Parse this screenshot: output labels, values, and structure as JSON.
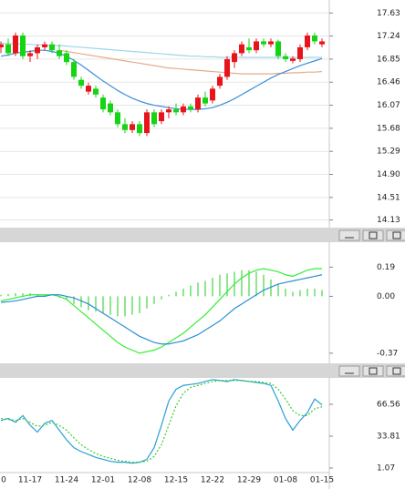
{
  "chart_data": [
    {
      "type": "candlestick",
      "open": [
        17.05,
        17.1,
        16.95,
        17.25,
        16.9,
        16.95,
        17.05,
        17.1,
        17.0,
        16.95,
        16.8,
        16.5,
        16.3,
        16.35,
        16.2,
        16.1,
        15.95,
        15.75,
        15.65,
        15.75,
        15.6,
        15.95,
        15.8,
        15.95,
        16.0,
        15.95,
        16.05,
        16.0,
        16.2,
        16.15,
        16.4,
        16.55,
        16.8,
        16.95,
        17.05,
        17.0,
        17.15,
        17.1,
        17.15,
        16.9,
        16.82,
        16.85,
        17.05,
        17.25,
        17.1
      ],
      "high": [
        17.15,
        17.2,
        17.3,
        17.3,
        17.0,
        17.1,
        17.15,
        17.15,
        17.1,
        17.0,
        16.85,
        16.55,
        16.45,
        16.4,
        16.25,
        16.15,
        16.0,
        15.85,
        15.8,
        15.8,
        16.0,
        16.0,
        16.0,
        16.05,
        16.1,
        16.1,
        16.1,
        16.25,
        16.3,
        16.4,
        16.6,
        16.9,
        17.0,
        17.15,
        17.2,
        17.2,
        17.2,
        17.2,
        17.18,
        16.95,
        16.9,
        17.1,
        17.3,
        17.3,
        17.2
      ],
      "low": [
        16.95,
        16.9,
        16.9,
        16.85,
        16.8,
        16.85,
        17.0,
        16.95,
        16.85,
        16.75,
        16.5,
        16.35,
        16.25,
        16.2,
        15.95,
        15.9,
        15.7,
        15.6,
        15.6,
        15.55,
        15.55,
        15.7,
        15.75,
        15.85,
        15.9,
        15.9,
        15.95,
        15.95,
        16.05,
        16.1,
        16.35,
        16.5,
        16.7,
        16.9,
        16.95,
        16.95,
        17.05,
        17.05,
        16.85,
        16.8,
        16.78,
        16.8,
        17.0,
        17.1,
        17.05
      ],
      "close": [
        17.1,
        16.95,
        17.25,
        16.9,
        16.95,
        17.05,
        17.1,
        17.0,
        16.9,
        16.8,
        16.55,
        16.4,
        16.4,
        16.25,
        16.0,
        15.95,
        15.75,
        15.65,
        15.75,
        15.6,
        15.95,
        15.75,
        15.95,
        16.0,
        15.95,
        16.05,
        16.0,
        16.2,
        16.1,
        16.35,
        16.55,
        16.85,
        16.95,
        17.1,
        17.0,
        17.15,
        17.1,
        17.15,
        16.9,
        16.85,
        16.86,
        17.05,
        17.25,
        17.15,
        17.15
      ],
      "up_color": "#e8141b",
      "down_color": "#14d414",
      "series": [
        {
          "color": "#9fd4ea",
          "values": [
            17.12,
            17.11,
            17.11,
            17.1,
            17.1,
            17.09,
            17.09,
            17.08,
            17.08,
            17.07,
            17.06,
            17.05,
            17.04,
            17.03,
            17.02,
            17.01,
            17.0,
            16.99,
            16.98,
            16.97,
            16.96,
            16.95,
            16.94,
            16.93,
            16.92,
            16.91,
            16.9,
            16.9,
            16.89,
            16.89,
            16.88,
            16.88,
            16.88,
            16.88,
            16.88,
            16.88,
            16.88,
            16.88,
            16.88,
            16.88,
            16.88,
            16.88,
            16.88,
            16.88,
            16.88
          ]
        },
        {
          "color": "#e6aa86",
          "values": [
            null,
            null,
            null,
            null,
            null,
            null,
            null,
            null,
            17.0,
            16.98,
            16.96,
            16.94,
            16.92,
            16.9,
            16.88,
            16.86,
            16.84,
            16.82,
            16.8,
            16.78,
            16.76,
            16.74,
            16.72,
            16.7,
            16.69,
            16.68,
            16.67,
            16.66,
            16.65,
            16.64,
            16.63,
            16.62,
            16.61,
            16.6,
            16.6,
            16.6,
            16.6,
            16.6,
            16.61,
            16.61,
            16.62,
            16.62,
            16.63,
            16.63,
            16.64
          ]
        },
        {
          "color": "#3a8fd6",
          "values": [
            16.9,
            16.92,
            16.95,
            16.97,
            16.98,
            17.0,
            17.0,
            16.98,
            16.95,
            16.9,
            16.83,
            16.75,
            16.66,
            16.57,
            16.48,
            16.4,
            16.32,
            16.25,
            16.19,
            16.14,
            16.1,
            16.07,
            16.05,
            16.03,
            16.01,
            16.0,
            16.0,
            16.0,
            16.01,
            16.03,
            16.07,
            16.12,
            16.18,
            16.25,
            16.32,
            16.39,
            16.46,
            16.53,
            16.59,
            16.64,
            16.69,
            16.74,
            16.78,
            16.82,
            16.86
          ]
        }
      ],
      "ylim": [
        14.03,
        17.85
      ],
      "yticks": [
        17.63,
        17.24,
        16.85,
        16.46,
        16.07,
        15.68,
        15.29,
        {
          "value": 14.9,
          "label": "14.90"
        },
        14.51,
        14.13
      ],
      "grid": true
    },
    {
      "type": "macd",
      "histogram": {
        "color": "#22cc22",
        "values": [
          0.01,
          0.015,
          0.02,
          0.02,
          0.02,
          0.01,
          0.01,
          0.0,
          -0.01,
          -0.02,
          -0.05,
          -0.07,
          -0.09,
          -0.1,
          -0.11,
          -0.12,
          -0.13,
          -0.13,
          -0.12,
          -0.11,
          -0.08,
          -0.05,
          -0.02,
          0.01,
          0.03,
          0.05,
          0.07,
          0.09,
          0.1,
          0.12,
          0.14,
          0.15,
          0.16,
          0.17,
          0.17,
          0.16,
          0.14,
          0.11,
          0.08,
          0.05,
          0.03,
          0.04,
          0.05,
          0.05,
          0.04
        ]
      },
      "series": [
        {
          "color": "#33ee33",
          "values": [
            -0.03,
            -0.02,
            -0.01,
            0.0,
            0.01,
            0.01,
            0.01,
            0.01,
            0.0,
            -0.02,
            -0.06,
            -0.1,
            -0.14,
            -0.18,
            -0.22,
            -0.26,
            -0.3,
            -0.33,
            -0.35,
            -0.37,
            -0.36,
            -0.35,
            -0.33,
            -0.3,
            -0.27,
            -0.24,
            -0.2,
            -0.16,
            -0.12,
            -0.07,
            -0.02,
            0.03,
            0.08,
            0.12,
            0.15,
            0.17,
            0.18,
            0.17,
            0.16,
            0.14,
            0.13,
            0.15,
            0.17,
            0.18,
            0.18
          ]
        },
        {
          "color": "#2a8fd6",
          "values": [
            -0.04,
            -0.035,
            -0.03,
            -0.02,
            -0.01,
            0.0,
            0.0,
            0.01,
            0.01,
            0.0,
            -0.01,
            -0.03,
            -0.05,
            -0.08,
            -0.11,
            -0.14,
            -0.17,
            -0.2,
            -0.23,
            -0.26,
            -0.28,
            -0.3,
            -0.31,
            -0.31,
            -0.3,
            -0.29,
            -0.27,
            -0.25,
            -0.22,
            -0.19,
            -0.16,
            -0.12,
            -0.08,
            -0.05,
            -0.02,
            0.01,
            0.04,
            0.06,
            0.08,
            0.09,
            0.1,
            0.11,
            0.12,
            0.13,
            0.14
          ]
        }
      ],
      "ylim": [
        -0.43,
        0.34
      ],
      "yticks": [
        0.19,
        {
          "value": 0,
          "label": "0.00"
        },
        -0.37
      ],
      "grid": false
    },
    {
      "type": "line",
      "categories": [
        "0",
        null,
        null,
        null,
        "11-17",
        null,
        null,
        null,
        null,
        "11-24",
        null,
        null,
        null,
        null,
        "12-01",
        null,
        null,
        null,
        null,
        "12-08",
        null,
        null,
        null,
        null,
        "12-15",
        null,
        null,
        null,
        null,
        "12-22",
        null,
        null,
        null,
        null,
        "12-29",
        null,
        null,
        null,
        null,
        "01-08",
        null,
        null,
        null,
        null,
        "01-15"
      ],
      "series": [
        {
          "color": "#2a9fd6",
          "style": "solid",
          "values": [
            50,
            52,
            48,
            55,
            45,
            38,
            47,
            50,
            40,
            30,
            22,
            18,
            15,
            12,
            10,
            8,
            7,
            7,
            6,
            7,
            10,
            22,
            45,
            70,
            82,
            86,
            87,
            88,
            90,
            92,
            91,
            90,
            92,
            91,
            90,
            89,
            88,
            86,
            70,
            52,
            40,
            50,
            58,
            72,
            66
          ]
        },
        {
          "color": "#33cc33",
          "style": "dotted",
          "values": [
            52,
            51,
            50,
            52,
            48,
            44,
            45,
            48,
            45,
            40,
            32,
            25,
            20,
            16,
            13,
            11,
            9,
            8,
            7,
            7,
            8,
            13,
            25,
            45,
            65,
            78,
            84,
            86,
            88,
            90,
            91,
            91,
            91,
            91,
            90,
            90,
            89,
            88,
            82,
            72,
            60,
            55,
            55,
            62,
            64
          ]
        }
      ],
      "ylim": [
        -2.7,
        93.7
      ],
      "yticks": [
        66.56,
        33.81,
        1.07
      ],
      "grid": false
    }
  ]
}
